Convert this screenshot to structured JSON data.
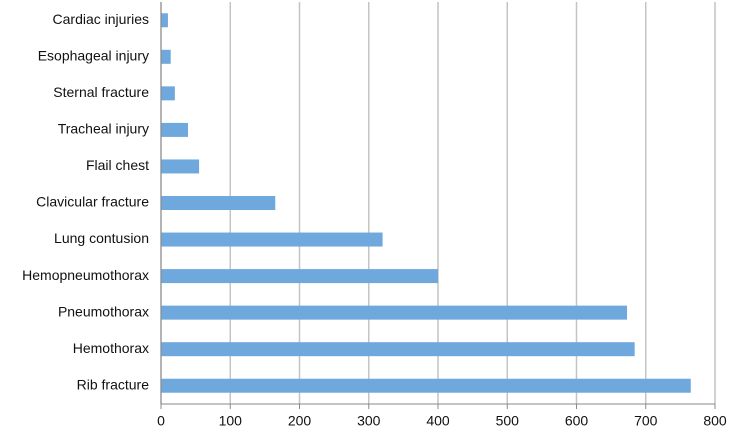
{
  "chart_data": {
    "type": "bar",
    "orientation": "horizontal",
    "categories": [
      "Cardiac injuries",
      "Esophageal injury",
      "Sternal fracture",
      "Tracheal injury",
      "Flail chest",
      "Clavicular fracture",
      "Lung contusion",
      "Hemopneumothorax",
      "Pneumothorax",
      "Hemothorax",
      "Rib fracture"
    ],
    "values": [
      10,
      14,
      20,
      39,
      55,
      165,
      320,
      400,
      673,
      684,
      765
    ],
    "color": "#6fa8dc",
    "xlim": [
      0,
      800
    ],
    "xticks": [
      0,
      100,
      200,
      300,
      400,
      500,
      600,
      700,
      800
    ],
    "grid": true
  }
}
